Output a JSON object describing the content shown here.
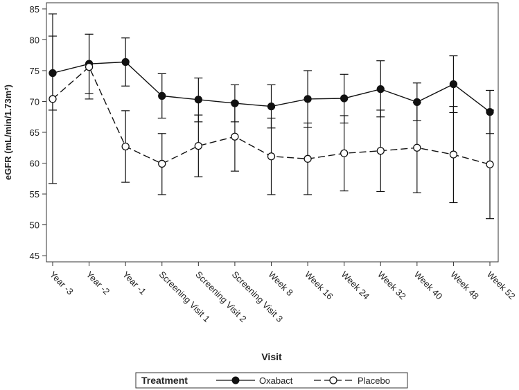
{
  "chart_data": {
    "type": "line",
    "title": "",
    "xlabel": "Visit",
    "ylabel": "eGFR (mL/min/1.73m²)",
    "ylim": [
      44,
      86
    ],
    "yticks": [
      45,
      50,
      55,
      60,
      65,
      70,
      75,
      80,
      85
    ],
    "categories": [
      "Year -3",
      "Year -2",
      "Year -1",
      "Screening Visit 1",
      "Screening Visit 2",
      "Screening Visit 3",
      "Week 8",
      "Week 16",
      "Week 24",
      "Week 32",
      "Week 40",
      "Week 48",
      "Week 52"
    ],
    "grid": false,
    "legend": {
      "title": "Treatment",
      "position": "bottom"
    },
    "series": [
      {
        "name": "Oxabact",
        "line_style": "solid",
        "marker": "filled-circle",
        "values": [
          74.6,
          76.1,
          76.4,
          70.9,
          70.3,
          69.7,
          69.2,
          70.4,
          70.5,
          72.0,
          69.9,
          72.8,
          68.3
        ],
        "lower": [
          68.6,
          71.3,
          72.5,
          67.3,
          66.7,
          66.7,
          65.7,
          65.8,
          66.5,
          67.5,
          66.9,
          68.2,
          64.8
        ],
        "upper": [
          80.6,
          80.9,
          80.3,
          74.5,
          73.8,
          72.7,
          72.7,
          75.0,
          74.4,
          76.6,
          73.0,
          77.4,
          71.8
        ]
      },
      {
        "name": "Placebo",
        "line_style": "dashed",
        "marker": "open-circle",
        "values": [
          70.4,
          75.6,
          62.7,
          59.9,
          62.8,
          64.3,
          61.1,
          60.7,
          61.6,
          62.0,
          62.5,
          61.4,
          59.8
        ],
        "lower": [
          56.7,
          70.4,
          56.9,
          54.9,
          57.8,
          58.7,
          54.9,
          54.9,
          55.5,
          55.4,
          55.2,
          53.6,
          51.0
        ],
        "upper": [
          84.2,
          80.9,
          68.5,
          64.8,
          67.8,
          69.9,
          67.3,
          66.5,
          67.7,
          68.6,
          69.8,
          69.2,
          68.6
        ]
      }
    ]
  }
}
